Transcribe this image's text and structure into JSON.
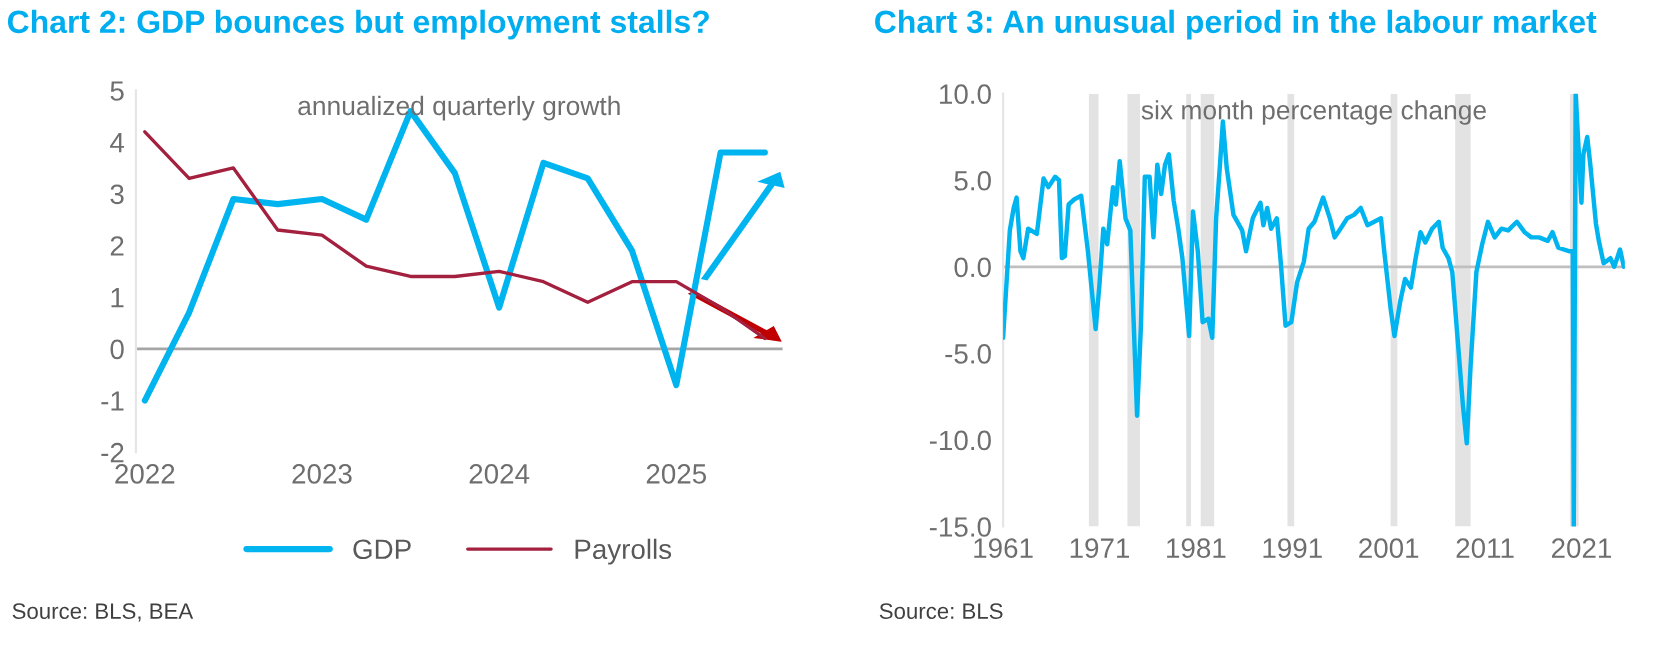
{
  "chart_data": [
    {
      "type": "line",
      "title": "Chart 2: GDP bounces but employment stalls?",
      "subtitle": "annualized quarterly growth",
      "annotations": [
        "Source: BLS, BEA"
      ],
      "x": [
        2022,
        2022.25,
        2022.5,
        2022.75,
        2023,
        2023.25,
        2023.5,
        2023.75,
        2024,
        2024.25,
        2024.5,
        2024.75,
        2025,
        2025.25,
        2025.5
      ],
      "series": [
        {
          "name": "GDP",
          "color": "#00b4f0",
          "values": [
            -1.0,
            0.7,
            2.9,
            2.8,
            2.9,
            2.5,
            4.6,
            3.4,
            0.8,
            3.6,
            3.3,
            1.9,
            -0.7,
            3.8,
            3.8
          ]
        },
        {
          "name": "Payrolls",
          "color": "#a3203f",
          "values": [
            4.2,
            3.3,
            3.5,
            2.3,
            2.2,
            1.6,
            1.4,
            1.4,
            1.5,
            1.3,
            0.9,
            1.3,
            1.3,
            0.8,
            0.2
          ]
        }
      ],
      "xlim": [
        2021.95,
        2025.6
      ],
      "xticks": [
        2022,
        2023,
        2024,
        2025
      ],
      "ylim": [
        -2,
        5
      ],
      "yticks": [
        -2,
        -1,
        0,
        1,
        2,
        3,
        4,
        5
      ],
      "ref_lines": [
        {
          "axis": "y",
          "value": 0,
          "color": "#a6a6a6"
        }
      ],
      "legend": "bottom"
    },
    {
      "type": "line",
      "title": "Chart 3: An unusual period in the labour market",
      "subtitle": "six month percentage change",
      "annotations": [
        "Source: BLS"
      ],
      "x": [
        1961.0,
        1961.1,
        1961.7,
        1962.1,
        1962.4,
        1962.8,
        1963.1,
        1963.6,
        1964.5,
        1965.2,
        1965.7,
        1966.4,
        1966.8,
        1967.1,
        1967.4,
        1967.8,
        1968.4,
        1969.1,
        1969.8,
        1970.6,
        1971.0,
        1971.4,
        1971.8,
        1972.4,
        1972.7,
        1973.1,
        1973.7,
        1974.2,
        1974.9,
        1975.3,
        1975.7,
        1976.2,
        1976.6,
        1977.0,
        1977.4,
        1977.8,
        1978.2,
        1978.7,
        1979.2,
        1979.6,
        1980.3,
        1980.7,
        1981.2,
        1981.7,
        1982.3,
        1982.7,
        1983.1,
        1983.5,
        1983.8,
        1984.2,
        1984.9,
        1985.8,
        1986.2,
        1986.9,
        1987.7,
        1988.0,
        1988.4,
        1988.8,
        1989.4,
        1989.8,
        1990.3,
        1990.9,
        1991.5,
        1992.2,
        1992.7,
        1993.3,
        1994.2,
        1994.9,
        1995.4,
        1996.0,
        1996.7,
        1997.4,
        1998.1,
        1998.8,
        1999.5,
        2000.2,
        2000.5,
        2001.2,
        2001.6,
        2002.2,
        2002.7,
        2003.3,
        2003.8,
        2004.3,
        2004.8,
        2005.5,
        2006.2,
        2006.6,
        2007.2,
        2007.6,
        2008.1,
        2008.7,
        2009.1,
        2009.5,
        2010.1,
        2010.7,
        2011.3,
        2012.0,
        2012.7,
        2013.4,
        2014.3,
        2015.1,
        2015.8,
        2016.6,
        2017.5,
        2018.0,
        2018.6,
        2019.7,
        2020.1,
        2020.2,
        2020.4,
        2021.0,
        2021.2,
        2021.6,
        2021.9,
        2022.5,
        2022.8,
        2023.3,
        2024.0,
        2024.4,
        2025.0,
        2025.4
      ],
      "series": [
        {
          "color": "#00b4f0",
          "values": [
            -4.1,
            -3.2,
            2.1,
            3.4,
            4.0,
            0.9,
            0.5,
            2.2,
            1.9,
            5.1,
            4.6,
            5.2,
            5.0,
            0.5,
            0.6,
            3.6,
            3.9,
            4.1,
            0.9,
            -3.6,
            -1.0,
            2.2,
            1.3,
            4.6,
            3.6,
            6.1,
            2.8,
            2.1,
            -8.6,
            -3.4,
            5.2,
            5.2,
            1.7,
            5.9,
            4.2,
            5.9,
            6.5,
            3.8,
            2.1,
            0.5,
            -4.0,
            3.2,
            0.9,
            -3.2,
            -3.0,
            -4.1,
            2.8,
            5.9,
            8.4,
            5.7,
            3.0,
            2.1,
            0.9,
            2.8,
            3.7,
            2.4,
            3.4,
            2.2,
            2.8,
            0.3,
            -3.4,
            -3.2,
            -0.9,
            0.3,
            2.2,
            2.6,
            4.0,
            2.8,
            1.7,
            2.2,
            2.8,
            3.0,
            3.4,
            2.4,
            2.6,
            2.8,
            1.1,
            -2.4,
            -4.0,
            -2.0,
            -0.7,
            -1.2,
            0.5,
            2.0,
            1.4,
            2.2,
            2.6,
            1.1,
            0.5,
            -0.3,
            -3.8,
            -8.0,
            -10.2,
            -5.7,
            -0.3,
            1.3,
            2.6,
            1.7,
            2.2,
            2.1,
            2.6,
            2.0,
            1.7,
            1.7,
            1.5,
            2.0,
            1.1,
            0.9,
            0.9,
            -15.0,
            10.0,
            3.7,
            6.5,
            7.5,
            6.0,
            2.5,
            1.5,
            0.2,
            0.5,
            0.0,
            1.0,
            0.0
          ]
        }
      ],
      "xlim": [
        1961,
        2025.5
      ],
      "xticks": [
        1961,
        1971,
        1981,
        1991,
        2001,
        2011,
        2021
      ],
      "ylim": [
        -15,
        10
      ],
      "yticks": [
        {
          "value": -15,
          "label": "-15.0"
        },
        {
          "value": -10,
          "label": "-10.0"
        },
        {
          "value": -5,
          "label": "-5.0"
        },
        {
          "value": 0,
          "label": "0.0"
        },
        {
          "value": 5,
          "label": "5.0"
        },
        {
          "value": 10,
          "label": "10.0"
        }
      ],
      "ref_lines": [
        {
          "axis": "y",
          "value": 0,
          "color": "#bfbfbf"
        }
      ],
      "bands": [
        {
          "axis": "x",
          "from": 1969.9,
          "to": 1970.9,
          "color": "#e3e3e3"
        },
        {
          "axis": "x",
          "from": 1973.9,
          "to": 1975.2,
          "color": "#e3e3e3"
        },
        {
          "axis": "x",
          "from": 1980.0,
          "to": 1980.5,
          "color": "#e3e3e3"
        },
        {
          "axis": "x",
          "from": 1981.5,
          "to": 1982.9,
          "color": "#e3e3e3"
        },
        {
          "axis": "x",
          "from": 1990.5,
          "to": 1991.2,
          "color": "#e3e3e3"
        },
        {
          "axis": "x",
          "from": 2001.2,
          "to": 2001.9,
          "color": "#e3e3e3"
        },
        {
          "axis": "x",
          "from": 2007.9,
          "to": 2009.5,
          "color": "#e3e3e3"
        },
        {
          "axis": "x",
          "from": 2019.8,
          "to": 2020.7,
          "color": "#e3e3e3"
        }
      ]
    }
  ]
}
